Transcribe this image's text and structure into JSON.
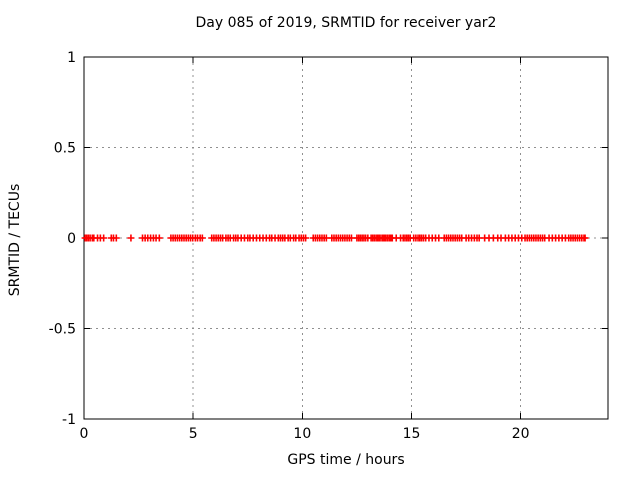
{
  "chart_data": {
    "type": "scatter",
    "title": "Day 085 of 2019, SRMTID for receiver yar2",
    "xlabel": "GPS time / hours",
    "ylabel": "SRMTID / TECUs",
    "xlim": [
      0,
      24
    ],
    "ylim": [
      -1,
      1
    ],
    "xticks": [
      0,
      5,
      10,
      15,
      20
    ],
    "xtick_labels": [
      "0",
      "5",
      "10",
      "15",
      "20"
    ],
    "yticks": [
      -1,
      -0.5,
      0,
      0.5,
      1
    ],
    "ytick_labels": [
      "-1",
      "-0.5",
      "0",
      "0.5",
      "1"
    ],
    "grid": "dashed gray at interior ticks",
    "legend": "none",
    "series": [
      {
        "name": "SRMTID",
        "marker": "plus",
        "color": "#ff0000",
        "y_constant": 0,
        "x": [
          0.05,
          0.12,
          0.2,
          0.28,
          0.38,
          0.45,
          0.62,
          0.75,
          0.9,
          1.25,
          1.35,
          1.48,
          2.15,
          2.68,
          2.8,
          2.92,
          3.05,
          3.18,
          3.3,
          3.45,
          3.98,
          4.08,
          4.18,
          4.28,
          4.38,
          4.48,
          4.58,
          4.68,
          4.78,
          4.88,
          4.98,
          5.1,
          5.2,
          5.32,
          5.42,
          5.85,
          5.95,
          6.05,
          6.15,
          6.25,
          6.35,
          6.5,
          6.6,
          6.7,
          6.85,
          6.95,
          7.05,
          7.2,
          7.35,
          7.5,
          7.6,
          7.75,
          7.9,
          8.05,
          8.2,
          8.35,
          8.5,
          8.6,
          8.75,
          8.9,
          9.0,
          9.1,
          9.2,
          9.35,
          9.45,
          9.6,
          9.7,
          9.85,
          9.95,
          10.05,
          10.15,
          10.5,
          10.6,
          10.7,
          10.8,
          10.9,
          11.0,
          11.1,
          11.35,
          11.45,
          11.55,
          11.65,
          11.75,
          11.85,
          11.95,
          12.05,
          12.15,
          12.25,
          12.5,
          12.58,
          12.66,
          12.74,
          12.82,
          12.9,
          13.0,
          13.15,
          13.22,
          13.3,
          13.38,
          13.45,
          13.52,
          13.6,
          13.68,
          13.75,
          13.82,
          13.9,
          13.98,
          14.05,
          14.12,
          14.3,
          14.5,
          14.62,
          14.7,
          14.78,
          14.86,
          14.94,
          15.1,
          15.2,
          15.3,
          15.38,
          15.46,
          15.55,
          15.65,
          15.8,
          15.95,
          16.1,
          16.25,
          16.5,
          16.6,
          16.7,
          16.8,
          16.9,
          17.0,
          17.1,
          17.2,
          17.3,
          17.5,
          17.62,
          17.75,
          17.88,
          18.0,
          18.1,
          18.35,
          18.55,
          18.75,
          18.95,
          19.1,
          19.3,
          19.45,
          19.6,
          19.75,
          19.9,
          20.05,
          20.2,
          20.3,
          20.4,
          20.5,
          20.6,
          20.7,
          20.8,
          20.9,
          21.0,
          21.1,
          21.3,
          21.45,
          21.6,
          21.75,
          21.9,
          22.05,
          22.2,
          22.3,
          22.4,
          22.5,
          22.6,
          22.7,
          22.8,
          22.9,
          22.95
        ]
      }
    ]
  },
  "colors": {
    "background": "#ffffff",
    "border": "#000000",
    "grid": "#909090",
    "marker": "#ff0000",
    "text": "#000000"
  }
}
